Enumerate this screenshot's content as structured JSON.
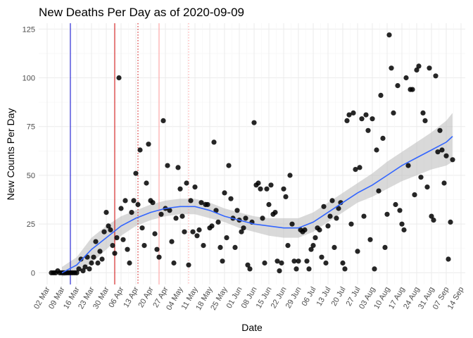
{
  "chart_data": {
    "type": "scatter",
    "title": "New Deaths Per Day as of 2020-09-09",
    "xlabel": "Date",
    "ylabel": "New Counts Per Day",
    "x_start": "2020-02-27",
    "x_end": "2020-09-16",
    "ylim": [
      -6,
      128
    ],
    "x_ticks": [
      "02 Mar",
      "09 Mar",
      "16 Mar",
      "23 Mar",
      "30 Mar",
      "06 Apr",
      "13 Apr",
      "20 Apr",
      "27 Apr",
      "04 May",
      "11 May",
      "18 May",
      "25 May",
      "01 Jun",
      "08 Jun",
      "15 Jun",
      "22 Jun",
      "29 Jun",
      "06 Jul",
      "13 Jul",
      "20 Jul",
      "27 Jul",
      "03 Aug",
      "10 Aug",
      "17 Aug",
      "24 Aug",
      "31 Aug",
      "07 Sep",
      "14 Sep"
    ],
    "x_tick_dates": [
      "2020-03-02",
      "2020-03-09",
      "2020-03-16",
      "2020-03-23",
      "2020-03-30",
      "2020-04-06",
      "2020-04-13",
      "2020-04-20",
      "2020-04-27",
      "2020-05-04",
      "2020-05-11",
      "2020-05-18",
      "2020-05-25",
      "2020-06-01",
      "2020-06-08",
      "2020-06-15",
      "2020-06-22",
      "2020-06-29",
      "2020-07-06",
      "2020-07-13",
      "2020-07-20",
      "2020-07-27",
      "2020-08-03",
      "2020-08-10",
      "2020-08-17",
      "2020-08-24",
      "2020-08-31",
      "2020-09-07",
      "2020-09-14"
    ],
    "y_ticks": [
      0,
      25,
      50,
      75,
      100,
      125
    ],
    "grid": true,
    "vlines": [
      {
        "date": "2020-03-13",
        "color": "#0000cd",
        "style": "solid"
      },
      {
        "date": "2020-04-03",
        "color": "#cc0000",
        "style": "solid"
      },
      {
        "date": "2020-04-14",
        "color": "#cc0000",
        "style": "dotted"
      },
      {
        "date": "2020-04-24",
        "color": "#ff9999",
        "style": "solid"
      },
      {
        "date": "2020-05-08",
        "color": "#ff9999",
        "style": "dotted"
      }
    ],
    "points": [
      [
        "2020-03-04",
        0
      ],
      [
        "2020-03-05",
        0
      ],
      [
        "2020-03-06",
        0
      ],
      [
        "2020-03-07",
        1
      ],
      [
        "2020-03-08",
        0
      ],
      [
        "2020-03-09",
        0
      ],
      [
        "2020-03-10",
        0
      ],
      [
        "2020-03-11",
        0
      ],
      [
        "2020-03-12",
        0
      ],
      [
        "2020-03-13",
        0
      ],
      [
        "2020-03-14",
        0
      ],
      [
        "2020-03-15",
        0
      ],
      [
        "2020-03-16",
        0
      ],
      [
        "2020-03-17",
        2
      ],
      [
        "2020-03-18",
        7
      ],
      [
        "2020-03-19",
        1
      ],
      [
        "2020-03-20",
        3
      ],
      [
        "2020-03-21",
        8
      ],
      [
        "2020-03-22",
        2
      ],
      [
        "2020-03-23",
        5
      ],
      [
        "2020-03-24",
        8
      ],
      [
        "2020-03-25",
        16
      ],
      [
        "2020-03-26",
        5
      ],
      [
        "2020-03-27",
        11
      ],
      [
        "2020-03-28",
        7
      ],
      [
        "2020-03-29",
        21
      ],
      [
        "2020-03-30",
        31
      ],
      [
        "2020-03-31",
        24
      ],
      [
        "2020-04-01",
        22
      ],
      [
        "2020-04-02",
        14
      ],
      [
        "2020-04-03",
        10
      ],
      [
        "2020-04-04",
        18
      ],
      [
        "2020-04-05",
        100
      ],
      [
        "2020-04-06",
        33
      ],
      [
        "2020-04-07",
        17
      ],
      [
        "2020-04-08",
        37
      ],
      [
        "2020-04-09",
        12
      ],
      [
        "2020-04-10",
        5
      ],
      [
        "2020-04-11",
        31
      ],
      [
        "2020-04-12",
        37
      ],
      [
        "2020-04-13",
        51
      ],
      [
        "2020-04-14",
        35
      ],
      [
        "2020-04-15",
        63
      ],
      [
        "2020-04-16",
        23
      ],
      [
        "2020-04-17",
        14
      ],
      [
        "2020-04-18",
        46
      ],
      [
        "2020-04-19",
        66
      ],
      [
        "2020-04-20",
        37
      ],
      [
        "2020-04-21",
        36
      ],
      [
        "2020-04-22",
        20
      ],
      [
        "2020-04-23",
        12
      ],
      [
        "2020-04-24",
        8
      ],
      [
        "2020-04-25",
        30
      ],
      [
        "2020-04-26",
        78
      ],
      [
        "2020-04-27",
        33
      ],
      [
        "2020-04-28",
        55
      ],
      [
        "2020-04-29",
        32
      ],
      [
        "2020-04-30",
        16
      ],
      [
        "2020-05-01",
        5
      ],
      [
        "2020-05-02",
        28
      ],
      [
        "2020-05-03",
        54
      ],
      [
        "2020-05-04",
        43
      ],
      [
        "2020-05-05",
        29
      ],
      [
        "2020-05-06",
        21
      ],
      [
        "2020-05-07",
        46
      ],
      [
        "2020-05-08",
        4
      ],
      [
        "2020-05-09",
        37
      ],
      [
        "2020-05-10",
        21
      ],
      [
        "2020-05-11",
        44
      ],
      [
        "2020-05-12",
        19
      ],
      [
        "2020-05-13",
        22
      ],
      [
        "2020-05-14",
        36
      ],
      [
        "2020-05-15",
        14
      ],
      [
        "2020-05-16",
        35
      ],
      [
        "2020-05-17",
        35
      ],
      [
        "2020-05-18",
        23
      ],
      [
        "2020-05-19",
        24
      ],
      [
        "2020-05-20",
        67
      ],
      [
        "2020-05-21",
        32
      ],
      [
        "2020-05-22",
        26
      ],
      [
        "2020-05-23",
        13
      ],
      [
        "2020-05-24",
        6
      ],
      [
        "2020-05-25",
        41
      ],
      [
        "2020-05-26",
        18
      ],
      [
        "2020-05-27",
        55
      ],
      [
        "2020-05-28",
        38
      ],
      [
        "2020-05-29",
        28
      ],
      [
        "2020-05-30",
        13
      ],
      [
        "2020-05-31",
        32
      ],
      [
        "2020-06-01",
        27
      ],
      [
        "2020-06-02",
        21
      ],
      [
        "2020-06-03",
        23
      ],
      [
        "2020-06-04",
        28
      ],
      [
        "2020-06-05",
        4
      ],
      [
        "2020-06-06",
        2
      ],
      [
        "2020-06-07",
        26
      ],
      [
        "2020-06-08",
        77
      ],
      [
        "2020-06-09",
        45
      ],
      [
        "2020-06-10",
        46
      ],
      [
        "2020-06-11",
        43
      ],
      [
        "2020-06-12",
        28
      ],
      [
        "2020-06-13",
        5
      ],
      [
        "2020-06-14",
        43
      ],
      [
        "2020-06-15",
        35
      ],
      [
        "2020-06-16",
        45
      ],
      [
        "2020-06-17",
        30
      ],
      [
        "2020-06-18",
        31
      ],
      [
        "2020-06-19",
        6
      ],
      [
        "2020-06-20",
        1
      ],
      [
        "2020-06-21",
        5
      ],
      [
        "2020-06-22",
        43
      ],
      [
        "2020-06-23",
        39
      ],
      [
        "2020-06-24",
        14
      ],
      [
        "2020-06-25",
        50
      ],
      [
        "2020-06-26",
        25
      ],
      [
        "2020-06-27",
        6
      ],
      [
        "2020-06-28",
        2
      ],
      [
        "2020-06-29",
        6
      ],
      [
        "2020-06-30",
        22
      ],
      [
        "2020-07-01",
        21
      ],
      [
        "2020-07-02",
        22
      ],
      [
        "2020-07-03",
        6
      ],
      [
        "2020-07-04",
        2
      ],
      [
        "2020-07-05",
        12
      ],
      [
        "2020-07-06",
        14
      ],
      [
        "2020-07-07",
        18
      ],
      [
        "2020-07-08",
        23
      ],
      [
        "2020-07-09",
        22
      ],
      [
        "2020-07-10",
        8
      ],
      [
        "2020-07-11",
        34
      ],
      [
        "2020-07-12",
        5
      ],
      [
        "2020-07-13",
        24
      ],
      [
        "2020-07-14",
        29
      ],
      [
        "2020-07-15",
        37
      ],
      [
        "2020-07-16",
        13
      ],
      [
        "2020-07-17",
        28
      ],
      [
        "2020-07-18",
        33
      ],
      [
        "2020-07-19",
        36
      ],
      [
        "2020-07-20",
        5
      ],
      [
        "2020-07-21",
        2
      ],
      [
        "2020-07-22",
        78
      ],
      [
        "2020-07-23",
        81
      ],
      [
        "2020-07-24",
        25
      ],
      [
        "2020-07-25",
        82
      ],
      [
        "2020-07-26",
        53
      ],
      [
        "2020-07-27",
        11
      ],
      [
        "2020-07-28",
        54
      ],
      [
        "2020-07-29",
        79
      ],
      [
        "2020-07-30",
        29
      ],
      [
        "2020-07-31",
        81
      ],
      [
        "2020-08-01",
        73
      ],
      [
        "2020-08-02",
        17
      ],
      [
        "2020-08-03",
        79
      ],
      [
        "2020-08-04",
        2
      ],
      [
        "2020-08-05",
        63
      ],
      [
        "2020-08-06",
        42
      ],
      [
        "2020-08-07",
        91
      ],
      [
        "2020-08-08",
        69
      ],
      [
        "2020-08-09",
        13
      ],
      [
        "2020-08-10",
        30
      ],
      [
        "2020-08-11",
        122
      ],
      [
        "2020-08-12",
        105
      ],
      [
        "2020-08-13",
        82
      ],
      [
        "2020-08-14",
        35
      ],
      [
        "2020-08-15",
        96
      ],
      [
        "2020-08-16",
        32
      ],
      [
        "2020-08-17",
        25
      ],
      [
        "2020-08-18",
        22
      ],
      [
        "2020-08-19",
        100
      ],
      [
        "2020-08-20",
        55
      ],
      [
        "2020-08-21",
        94
      ],
      [
        "2020-08-22",
        94
      ],
      [
        "2020-08-23",
        40
      ],
      [
        "2020-08-24",
        104
      ],
      [
        "2020-08-25",
        106
      ],
      [
        "2020-08-26",
        49
      ],
      [
        "2020-08-27",
        82
      ],
      [
        "2020-08-28",
        78
      ],
      [
        "2020-08-29",
        44
      ],
      [
        "2020-08-30",
        105
      ],
      [
        "2020-08-31",
        29
      ],
      [
        "2020-09-01",
        27
      ],
      [
        "2020-09-02",
        101
      ],
      [
        "2020-09-03",
        62
      ],
      [
        "2020-09-04",
        73
      ],
      [
        "2020-09-05",
        63
      ],
      [
        "2020-09-06",
        46
      ],
      [
        "2020-09-07",
        60
      ],
      [
        "2020-09-08",
        7
      ],
      [
        "2020-09-09",
        26
      ],
      [
        "2020-09-10",
        58
      ]
    ],
    "smooth": {
      "color": "#3366ff",
      "band_color": "#bfbfbf",
      "x": [
        "2020-03-09",
        "2020-03-16",
        "2020-03-23",
        "2020-03-30",
        "2020-04-06",
        "2020-04-13",
        "2020-04-20",
        "2020-04-27",
        "2020-05-04",
        "2020-05-11",
        "2020-05-18",
        "2020-05-25",
        "2020-06-01",
        "2020-06-08",
        "2020-06-15",
        "2020-06-22",
        "2020-06-29",
        "2020-07-06",
        "2020-07-13",
        "2020-07-20",
        "2020-07-27",
        "2020-08-03",
        "2020-08-10",
        "2020-08-17",
        "2020-08-24",
        "2020-08-31",
        "2020-09-07",
        "2020-09-10"
      ],
      "y": [
        0,
        4,
        12,
        18,
        24,
        28,
        31,
        33,
        34,
        34,
        32,
        29,
        27,
        25,
        24,
        23,
        23,
        26,
        31,
        36,
        41,
        45,
        50,
        55,
        59,
        63,
        67,
        70
      ],
      "lower": [
        -2,
        0,
        5,
        12,
        19,
        24,
        27,
        29,
        30,
        30,
        28,
        26,
        23,
        21,
        19,
        18,
        18,
        21,
        26,
        31,
        36,
        39,
        43,
        47,
        50,
        53,
        55,
        57
      ],
      "upper": [
        3,
        8,
        18,
        24,
        29,
        32,
        35,
        37,
        38,
        38,
        36,
        33,
        31,
        29,
        28,
        28,
        28,
        31,
        36,
        41,
        46,
        51,
        57,
        62,
        67,
        72,
        78,
        82
      ]
    }
  }
}
